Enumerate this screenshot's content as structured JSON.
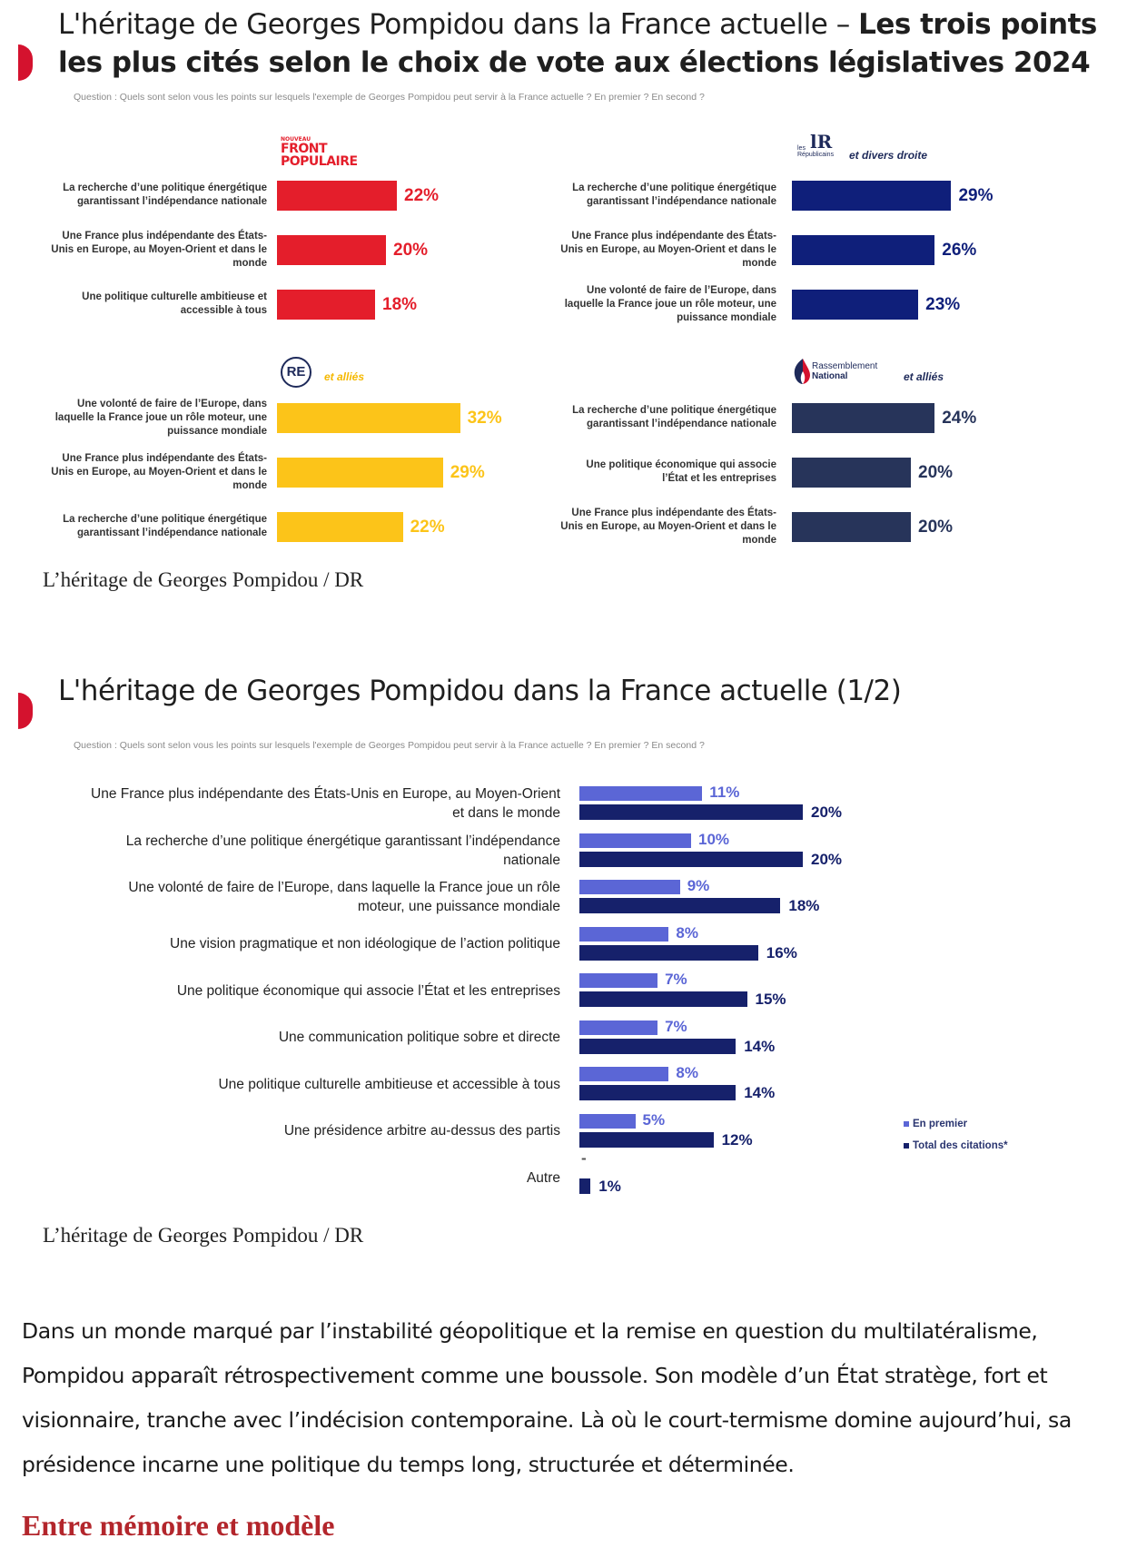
{
  "figure1": {
    "title_normal": "L'héritage de Georges Pompidou dans la France actuelle – ",
    "title_bold_line1": "Les trois points",
    "title_bold_line2": "les plus cités selon le choix de vote aux élections législatives 2024",
    "question": "Question : Quels sont selon vous les points sur lesquels l'exemple de Georges Pompidou peut servir à la France actuelle ? En premier ? En second ?",
    "caption": "L’héritage de Georges Pompidou  / DR"
  },
  "logos": {
    "fp_small": "NOUVEAU",
    "fp_line1": "FRONT",
    "fp_line2": "POPULAIRE",
    "lr_small1": "les",
    "lr_small2": "Républicains",
    "lr_letters": "lR",
    "lr_suffix": "et divers droite",
    "re_letters": "RE",
    "re_suffix": "et alliés",
    "rn_line1": "Rassemblement",
    "rn_line2": "National",
    "rn_suffix": "et alliés"
  },
  "figure2": {
    "title": "L'héritage de Georges Pompidou dans la France actuelle (1/2)",
    "question": "Question : Quels sont selon vous les points sur lesquels l'exemple de Georges Pompidou peut servir à la France actuelle ? En premier ? En second ?",
    "caption": "L’héritage de Georges Pompidou  / DR"
  },
  "article": {
    "paragraph": "Dans un monde marqué par l’instabilité géopolitique et la remise en question du multilatéralisme, Pompidou apparaît rétrospectivement comme une boussole. Son modèle d’un État stratège, fort et visionnaire, tranche avec l’indécision contemporaine. Là où le court-termisme domine aujourd’hui, sa présidence incarne une politique du temps long, structurée et déterminée.",
    "subheading": "Entre mémoire et modèle"
  },
  "colors": {
    "accent_red": "#d4122e",
    "nfp_red": "#e41e2b",
    "lr_blue": "#0f1f7a",
    "re_yellow": "#fcc419",
    "rn_navy": "#27345a",
    "premier_blue": "#5b66d6",
    "total_navy": "#16216b",
    "subhead_red": "#b3262c"
  },
  "chart_data": [
    {
      "type": "bar",
      "orientation": "horizontal",
      "panel": "Nouveau Front Populaire",
      "unit": "%",
      "categories": [
        "La recherche d’une politique énergétique garantissant l’indépendance nationale",
        "Une France plus indépendante des États-Unis en Europe, au Moyen-Orient et dans le monde",
        "Une politique culturelle ambitieuse et accessible à tous"
      ],
      "values": [
        22,
        20,
        18
      ]
    },
    {
      "type": "bar",
      "orientation": "horizontal",
      "panel": "Les Républicains et divers droite",
      "unit": "%",
      "categories": [
        "La recherche d’une politique énergétique garantissant l’indépendance nationale",
        "Une France plus indépendante des États-Unis en Europe, au Moyen-Orient et dans le monde",
        "Une volonté de faire de l’Europe, dans laquelle la France joue un rôle moteur, une puissance mondiale"
      ],
      "values": [
        29,
        26,
        23
      ]
    },
    {
      "type": "bar",
      "orientation": "horizontal",
      "panel": "RE et alliés",
      "unit": "%",
      "categories": [
        "Une volonté de faire de l’Europe, dans laquelle la France joue un rôle moteur, une puissance mondiale",
        "Une France plus indépendante des États-Unis en Europe, au Moyen-Orient et dans le monde",
        "La recherche d’une politique énergétique garantissant l’indépendance nationale"
      ],
      "values": [
        32,
        29,
        22
      ]
    },
    {
      "type": "bar",
      "orientation": "horizontal",
      "panel": "Rassemblement National et alliés",
      "unit": "%",
      "categories": [
        "La recherche d’une politique énergétique garantissant l’indépendance nationale",
        "Une politique économique qui associe l’État et les entreprises",
        "Une France plus indépendante des États-Unis en Europe, au Moyen-Orient et dans le monde"
      ],
      "values": [
        24,
        20,
        20
      ]
    },
    {
      "type": "bar",
      "orientation": "horizontal",
      "unit": "%",
      "categories": [
        "Une France plus indépendante des États-Unis en Europe, au Moyen-Orient et dans le monde",
        "La recherche d’une politique énergétique garantissant l’indépendance nationale",
        "Une volonté de faire de l’Europe, dans laquelle la France joue un rôle moteur, une puissance mondiale",
        "Une vision pragmatique et non idéologique de l’action politique",
        "Une politique économique qui associe l’État et les entreprises",
        "Une communication politique sobre et directe",
        "Une politique culturelle ambitieuse et accessible à tous",
        "Une présidence arbitre au-dessus des partis",
        "Autre"
      ],
      "series": [
        {
          "name": "En premier",
          "values": [
            11,
            10,
            9,
            8,
            7,
            7,
            8,
            5,
            null
          ],
          "labels": [
            "11%",
            "10%",
            "9%",
            "8%",
            "7%",
            "7%",
            "8%",
            "5%",
            "-"
          ]
        },
        {
          "name": "Total des citations*",
          "values": [
            20,
            20,
            18,
            16,
            15,
            14,
            14,
            12,
            1
          ],
          "labels": [
            "20%",
            "20%",
            "18%",
            "16%",
            "15%",
            "14%",
            "14%",
            "12%",
            "1%"
          ]
        }
      ],
      "legend": "right"
    }
  ]
}
